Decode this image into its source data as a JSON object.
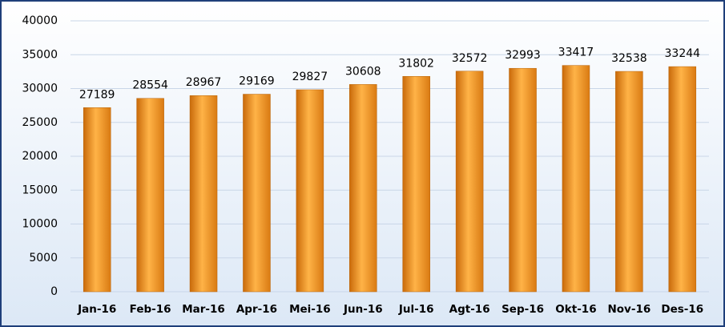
{
  "chart_data": {
    "type": "bar",
    "categories": [
      "Jan-16",
      "Feb-16",
      "Mar-16",
      "Apr-16",
      "Mei-16",
      "Jun-16",
      "Jul-16",
      "Agt-16",
      "Sep-16",
      "Okt-16",
      "Nov-16",
      "Des-16"
    ],
    "values": [
      27189,
      28554,
      28967,
      29169,
      29827,
      30608,
      31802,
      32572,
      32993,
      33417,
      32538,
      33244
    ],
    "color": "#f7941d",
    "ylim": [
      0,
      40000
    ],
    "yticks": [
      0,
      5000,
      10000,
      15000,
      20000,
      25000,
      30000,
      35000,
      40000
    ],
    "grid": true
  }
}
